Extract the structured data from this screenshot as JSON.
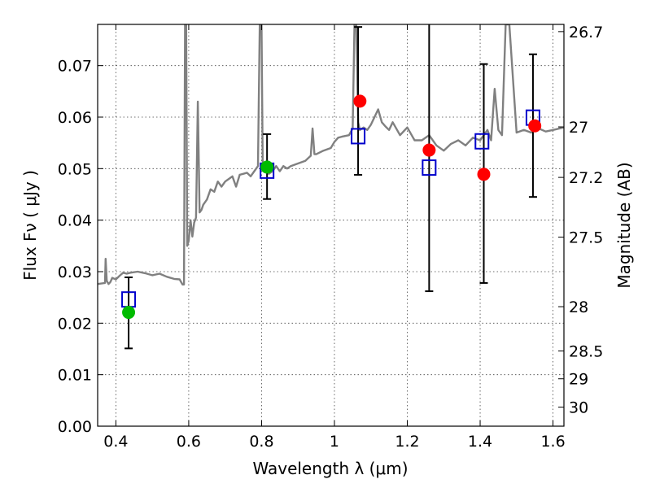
{
  "chart_data": {
    "type": "scatter",
    "title": "",
    "xlabel": "Wavelength  λ (μm)",
    "ylabel": "Flux  Fν  ( μJy )",
    "ylabel_right": "Magnitude (AB)",
    "xlim": [
      0.35,
      1.63
    ],
    "ylim": [
      0.0,
      0.078
    ],
    "grid": true,
    "x_ticks": [
      0.4,
      0.6,
      0.8,
      1.0,
      1.2,
      1.4,
      1.6
    ],
    "x_tick_labels": [
      "0.4",
      "0.6",
      "0.8",
      "1",
      "1.2",
      "1.4",
      "1.6"
    ],
    "y_ticks": [
      0.0,
      0.01,
      0.02,
      0.03,
      0.04,
      0.05,
      0.06,
      0.07
    ],
    "y_tick_labels": [
      "0.00",
      "0.01",
      "0.02",
      "0.03",
      "0.04",
      "0.05",
      "0.06",
      "0.07"
    ],
    "magnitude_ticks": [
      {
        "label": "26.7",
        "flux": 0.0766
      },
      {
        "label": "27",
        "flux": 0.0581
      },
      {
        "label": "27.2",
        "flux": 0.0483
      },
      {
        "label": "27.5",
        "flux": 0.0367
      },
      {
        "label": "28",
        "flux": 0.0232
      },
      {
        "label": "28.5",
        "flux": 0.0146
      },
      {
        "label": "29",
        "flux": 0.0092
      },
      {
        "label": "30",
        "flux": 0.0037
      }
    ],
    "series": [
      {
        "type": "line",
        "color": "#808080",
        "x": [
          0.35,
          0.37,
          0.372,
          0.375,
          0.38,
          0.385,
          0.39,
          0.4,
          0.41,
          0.42,
          0.43,
          0.44,
          0.46,
          0.48,
          0.5,
          0.52,
          0.54,
          0.56,
          0.575,
          0.583,
          0.587,
          0.59,
          0.593,
          0.596,
          0.6,
          0.605,
          0.61,
          0.615,
          0.62,
          0.625,
          0.63,
          0.635,
          0.64,
          0.65,
          0.66,
          0.67,
          0.68,
          0.69,
          0.7,
          0.71,
          0.72,
          0.73,
          0.74,
          0.75,
          0.76,
          0.77,
          0.78,
          0.79,
          0.795,
          0.8,
          0.803,
          0.806,
          0.81,
          0.82,
          0.83,
          0.84,
          0.85,
          0.86,
          0.87,
          0.88,
          0.9,
          0.92,
          0.935,
          0.94,
          0.945,
          0.95,
          0.97,
          0.99,
          1.0,
          1.01,
          1.02,
          1.04,
          1.05,
          1.055,
          1.06,
          1.065,
          1.07,
          1.08,
          1.09,
          1.1,
          1.12,
          1.13,
          1.14,
          1.15,
          1.16,
          1.18,
          1.2,
          1.22,
          1.24,
          1.26,
          1.28,
          1.3,
          1.32,
          1.34,
          1.36,
          1.38,
          1.4,
          1.42,
          1.43,
          1.44,
          1.45,
          1.46,
          1.47,
          1.48,
          1.5,
          1.52,
          1.54,
          1.56,
          1.58,
          1.6,
          1.63
        ],
        "y": [
          0.0276,
          0.0278,
          0.0325,
          0.0282,
          0.0276,
          0.028,
          0.0288,
          0.0285,
          0.0292,
          0.0298,
          0.0296,
          0.0298,
          0.03,
          0.0297,
          0.0293,
          0.0296,
          0.029,
          0.0286,
          0.0285,
          0.0275,
          0.0275,
          0.078,
          0.078,
          0.035,
          0.036,
          0.04,
          0.0368,
          0.0395,
          0.0405,
          0.063,
          0.0415,
          0.042,
          0.043,
          0.044,
          0.046,
          0.0455,
          0.0475,
          0.0465,
          0.0475,
          0.048,
          0.0485,
          0.0465,
          0.0488,
          0.049,
          0.0492,
          0.0485,
          0.0495,
          0.0505,
          0.078,
          0.078,
          0.0515,
          0.05,
          0.05,
          0.049,
          0.0495,
          0.0505,
          0.0495,
          0.0505,
          0.05,
          0.0505,
          0.051,
          0.0515,
          0.0525,
          0.0578,
          0.0528,
          0.0528,
          0.0535,
          0.054,
          0.0552,
          0.056,
          0.0562,
          0.0565,
          0.0578,
          0.078,
          0.078,
          0.059,
          0.0575,
          0.058,
          0.0575,
          0.0585,
          0.0615,
          0.059,
          0.0582,
          0.0575,
          0.059,
          0.0565,
          0.058,
          0.0555,
          0.0555,
          0.0565,
          0.0545,
          0.0535,
          0.0548,
          0.0555,
          0.0545,
          0.056,
          0.0555,
          0.0575,
          0.0555,
          0.0655,
          0.0575,
          0.0565,
          0.078,
          0.078,
          0.057,
          0.0575,
          0.057,
          0.0578,
          0.0572,
          0.0575,
          0.058
        ]
      },
      {
        "type": "errorbar",
        "color": "#000000",
        "x": [
          0.435,
          0.815,
          1.065,
          1.26,
          1.41,
          1.545
        ],
        "low": [
          0.0151,
          0.0441,
          0.0488,
          0.0262,
          0.0278,
          0.0445
        ],
        "high": [
          0.0289,
          0.0567,
          0.0775,
          0.0785,
          0.0703,
          0.0722
        ]
      },
      {
        "type": "scatter-square",
        "color": "#0000cc",
        "x": [
          0.435,
          0.815,
          1.065,
          1.26,
          1.405,
          1.545
        ],
        "y": [
          0.0246,
          0.0496,
          0.0563,
          0.0502,
          0.0553,
          0.0599
        ]
      },
      {
        "type": "scatter-circle",
        "color": "#00bb00",
        "x": [
          0.435,
          0.815
        ],
        "y": [
          0.0221,
          0.0503
        ]
      },
      {
        "type": "scatter-circle",
        "color": "#ff0000",
        "x": [
          1.07,
          1.26,
          1.41,
          1.55
        ],
        "y": [
          0.0631,
          0.0536,
          0.0489,
          0.0583
        ]
      }
    ]
  }
}
